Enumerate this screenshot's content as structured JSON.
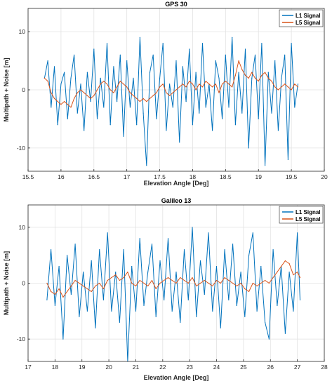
{
  "chart_data": [
    {
      "type": "line",
      "title": "GPS 30",
      "xlabel": "Elevation Angle [Deg]",
      "ylabel": "Multipath + Noise [m]",
      "xlim": [
        15.5,
        20
      ],
      "ylim": [
        -14,
        14
      ],
      "xticks": [
        15.5,
        16,
        16.5,
        17,
        17.5,
        18,
        18.5,
        19,
        19.5,
        20
      ],
      "yticks": [
        -10,
        0,
        10
      ],
      "grid": true,
      "legend_position": "top-right",
      "series": [
        {
          "name": "L1 Signal",
          "color": "#0072BD",
          "x": [
            15.75,
            15.8,
            15.85,
            15.9,
            15.95,
            16.0,
            16.05,
            16.1,
            16.15,
            16.2,
            16.25,
            16.3,
            16.35,
            16.4,
            16.45,
            16.5,
            16.55,
            16.6,
            16.65,
            16.7,
            16.75,
            16.8,
            16.85,
            16.9,
            16.95,
            17.0,
            17.05,
            17.1,
            17.15,
            17.2,
            17.25,
            17.3,
            17.35,
            17.4,
            17.45,
            17.5,
            17.55,
            17.6,
            17.65,
            17.7,
            17.75,
            17.8,
            17.85,
            17.9,
            17.95,
            18.0,
            18.05,
            18.1,
            18.15,
            18.2,
            18.25,
            18.3,
            18.35,
            18.4,
            18.45,
            18.5,
            18.55,
            18.6,
            18.65,
            18.7,
            18.75,
            18.8,
            18.85,
            18.9,
            18.95,
            19.0,
            19.05,
            19.1,
            19.15,
            19.2,
            19.25,
            19.3,
            19.35,
            19.4,
            19.45,
            19.5,
            19.55,
            19.6
          ],
          "y": [
            2,
            5,
            -3,
            4,
            -6,
            1,
            3,
            -5,
            2,
            6,
            -4,
            1,
            -7,
            3,
            -2,
            7,
            -5,
            2,
            -3,
            8,
            -6,
            4,
            -2,
            6,
            -8,
            5,
            -3,
            2,
            -6,
            9,
            -4,
            -13,
            3,
            6,
            -5,
            2,
            8,
            -7,
            1,
            -3,
            5,
            -9,
            4,
            -2,
            7,
            -6,
            3,
            -4,
            8,
            -3,
            1,
            -7,
            5,
            2,
            -5,
            6,
            -3,
            9,
            -6,
            3,
            -4,
            7,
            -10,
            2,
            6,
            -5,
            8,
            -13,
            3,
            -4,
            5,
            -7,
            2,
            6,
            -12,
            8,
            -3,
            1
          ]
        },
        {
          "name": "L5 Signal",
          "color": "#D95319",
          "x": [
            15.75,
            15.8,
            15.85,
            15.9,
            15.95,
            16.0,
            16.05,
            16.1,
            16.15,
            16.2,
            16.25,
            16.3,
            16.35,
            16.4,
            16.45,
            16.5,
            16.55,
            16.6,
            16.65,
            16.7,
            16.75,
            16.8,
            16.85,
            16.9,
            16.95,
            17.0,
            17.05,
            17.1,
            17.15,
            17.2,
            17.25,
            17.3,
            17.35,
            17.4,
            17.45,
            17.5,
            17.55,
            17.6,
            17.65,
            17.7,
            17.75,
            17.8,
            17.85,
            17.9,
            17.95,
            18.0,
            18.05,
            18.1,
            18.15,
            18.2,
            18.25,
            18.3,
            18.35,
            18.4,
            18.45,
            18.5,
            18.55,
            18.6,
            18.65,
            18.7,
            18.75,
            18.8,
            18.85,
            18.9,
            18.95,
            19.0,
            19.05,
            19.1,
            19.15,
            19.2,
            19.25,
            19.3,
            19.35,
            19.4,
            19.45,
            19.5,
            19.55,
            19.6
          ],
          "y": [
            2,
            1.5,
            -0.5,
            -1.5,
            -2,
            -2.5,
            -2,
            -2.5,
            -3,
            -1.5,
            -0.5,
            0,
            -0.5,
            -1,
            -1.5,
            -1,
            0,
            1,
            1.5,
            1,
            0,
            -0.5,
            0.5,
            1.5,
            1,
            0.5,
            -0.5,
            -1,
            -1.5,
            -2,
            -1.5,
            -2,
            -1.5,
            -1,
            -0.5,
            0.5,
            1,
            -0.5,
            -1,
            -0.5,
            0,
            0.5,
            1,
            0.5,
            1.5,
            1,
            0,
            1,
            0.5,
            1.5,
            1,
            0.5,
            1,
            -0.5,
            1,
            1.5,
            1,
            0.5,
            2.5,
            5,
            3.5,
            2.5,
            2,
            3,
            2,
            1.5,
            2.5,
            3,
            2,
            1.5,
            0.5,
            0,
            0.5,
            1,
            0.5,
            0,
            1,
            0.5
          ]
        }
      ]
    },
    {
      "type": "line",
      "title": "Galileo 13",
      "xlabel": "Elevation Angle [Deg]",
      "ylabel": "Multipath + Noise [m]",
      "xlim": [
        17,
        28
      ],
      "ylim": [
        -14,
        14
      ],
      "xticks": [
        17,
        18,
        19,
        20,
        21,
        22,
        23,
        24,
        25,
        26,
        27,
        28
      ],
      "yticks": [
        -10,
        0,
        10
      ],
      "grid": true,
      "legend_position": "top-right",
      "series": [
        {
          "name": "L1 Signal",
          "color": "#0072BD",
          "x": [
            17.7,
            17.85,
            18.0,
            18.15,
            18.3,
            18.45,
            18.6,
            18.75,
            18.9,
            19.05,
            19.2,
            19.35,
            19.5,
            19.65,
            19.8,
            19.95,
            20.1,
            20.25,
            20.4,
            20.55,
            20.7,
            20.85,
            21.0,
            21.15,
            21.3,
            21.45,
            21.6,
            21.75,
            21.9,
            22.05,
            22.2,
            22.35,
            22.5,
            22.65,
            22.8,
            22.95,
            23.1,
            23.25,
            23.4,
            23.55,
            23.7,
            23.85,
            24.0,
            24.15,
            24.3,
            24.45,
            24.6,
            24.75,
            24.9,
            25.05,
            25.2,
            25.35,
            25.5,
            25.65,
            25.8,
            25.95,
            26.1,
            26.25,
            26.4,
            26.55,
            26.7,
            26.85,
            27.0,
            27.1
          ],
          "y": [
            -3,
            6,
            -4,
            3,
            -10,
            5,
            -2,
            7,
            -6,
            2,
            -5,
            4,
            -8,
            6,
            -3,
            9,
            -5,
            2,
            -7,
            6,
            -14,
            3,
            -5,
            8,
            -4,
            2,
            7,
            -6,
            4,
            -3,
            8,
            -5,
            2,
            -7,
            6,
            -3,
            10,
            -6,
            4,
            -2,
            9,
            -5,
            3,
            -8,
            6,
            -3,
            7,
            -4,
            2,
            -6,
            5,
            9,
            -5,
            3,
            -7,
            -10,
            6,
            -4,
            3,
            -9,
            2,
            -5,
            9,
            -3
          ]
        },
        {
          "name": "L5 Signal",
          "color": "#D95319",
          "x": [
            17.7,
            17.85,
            18.0,
            18.15,
            18.3,
            18.45,
            18.6,
            18.75,
            18.9,
            19.05,
            19.2,
            19.35,
            19.5,
            19.65,
            19.8,
            19.95,
            20.1,
            20.25,
            20.4,
            20.55,
            20.7,
            20.85,
            21.0,
            21.15,
            21.3,
            21.45,
            21.6,
            21.75,
            21.9,
            22.05,
            22.2,
            22.35,
            22.5,
            22.65,
            22.8,
            22.95,
            23.1,
            23.25,
            23.4,
            23.55,
            23.7,
            23.85,
            24.0,
            24.15,
            24.3,
            24.45,
            24.6,
            24.75,
            24.9,
            25.05,
            25.2,
            25.35,
            25.5,
            25.65,
            25.8,
            25.95,
            26.1,
            26.25,
            26.4,
            26.55,
            26.7,
            26.85,
            27.0,
            27.1
          ],
          "y": [
            0,
            -1.5,
            -2,
            -1,
            -2.5,
            -1.5,
            -0.5,
            0.5,
            0,
            -0.5,
            -1,
            -1.5,
            -0.5,
            0,
            -1,
            0.5,
            1,
            1.5,
            0.5,
            1,
            2,
            0,
            -0.5,
            0.5,
            0,
            -0.5,
            0.5,
            -1,
            0,
            0.5,
            1,
            0.5,
            0,
            1,
            0.5,
            0,
            1,
            -0.5,
            0,
            0.5,
            0,
            -0.5,
            0.5,
            0,
            1,
            0.5,
            0,
            -0.5,
            0,
            -1,
            -1.5,
            0,
            -0.5,
            0,
            0.5,
            0,
            1,
            2,
            3,
            4,
            3.5,
            1.5,
            2,
            1
          ]
        }
      ]
    }
  ]
}
